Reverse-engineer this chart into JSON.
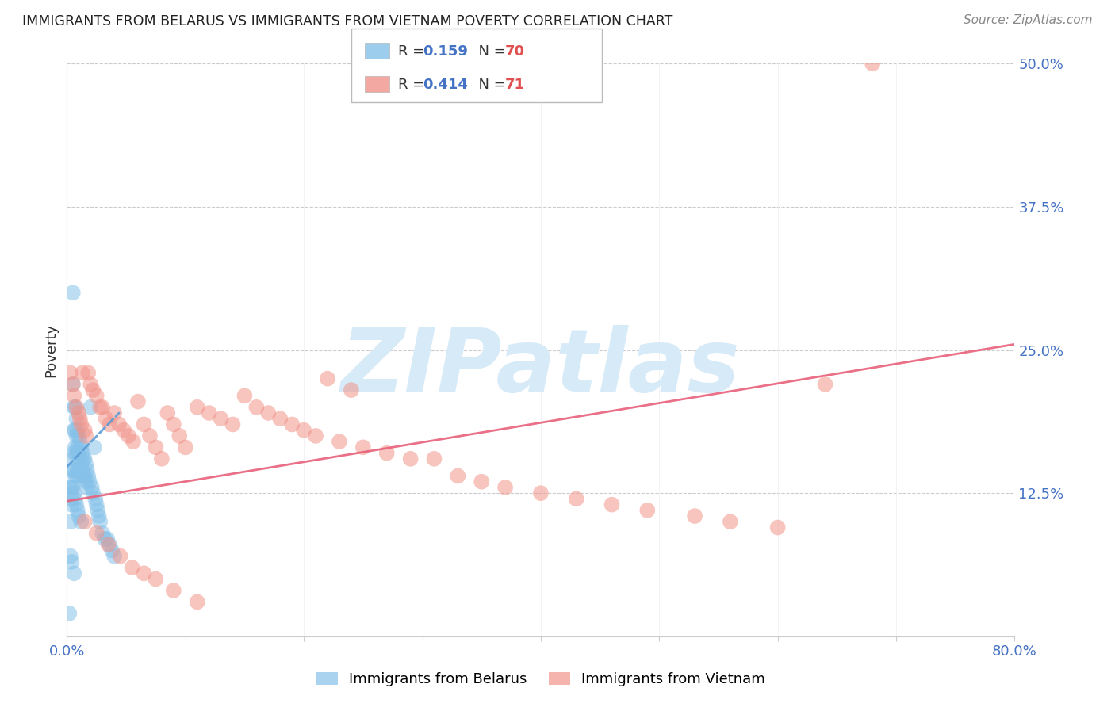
{
  "title": "IMMIGRANTS FROM BELARUS VS IMMIGRANTS FROM VIETNAM POVERTY CORRELATION CHART",
  "source": "Source: ZipAtlas.com",
  "ylabel": "Poverty",
  "xlim": [
    0.0,
    0.8
  ],
  "ylim": [
    0.0,
    0.5
  ],
  "color_belarus": "#85C1E9",
  "color_vietnam": "#F1948A",
  "trendline_belarus_color": "#5B9BD5",
  "trendline_vietnam_color": "#E8607A",
  "background_color": "#FFFFFF",
  "watermark_text": "ZIPatlas",
  "watermark_color": "#D6EAF8",
  "belarus_x": [
    0.002,
    0.003,
    0.003,
    0.004,
    0.004,
    0.004,
    0.005,
    0.005,
    0.005,
    0.005,
    0.006,
    0.006,
    0.006,
    0.006,
    0.007,
    0.007,
    0.007,
    0.007,
    0.008,
    0.008,
    0.008,
    0.008,
    0.009,
    0.009,
    0.009,
    0.01,
    0.01,
    0.01,
    0.011,
    0.011,
    0.011,
    0.012,
    0.012,
    0.013,
    0.013,
    0.014,
    0.014,
    0.015,
    0.015,
    0.016,
    0.016,
    0.017,
    0.017,
    0.018,
    0.019,
    0.02,
    0.021,
    0.022,
    0.023,
    0.024,
    0.025,
    0.026,
    0.027,
    0.028,
    0.03,
    0.032,
    0.034,
    0.036,
    0.038,
    0.04,
    0.003,
    0.005,
    0.006,
    0.007,
    0.008,
    0.009,
    0.01,
    0.012,
    0.004,
    0.006
  ],
  "belarus_y": [
    0.02,
    0.07,
    0.1,
    0.115,
    0.12,
    0.13,
    0.3,
    0.22,
    0.155,
    0.145,
    0.2,
    0.18,
    0.16,
    0.145,
    0.2,
    0.18,
    0.165,
    0.14,
    0.19,
    0.175,
    0.16,
    0.14,
    0.18,
    0.165,
    0.145,
    0.175,
    0.16,
    0.145,
    0.17,
    0.155,
    0.14,
    0.165,
    0.15,
    0.16,
    0.145,
    0.155,
    0.14,
    0.155,
    0.14,
    0.15,
    0.135,
    0.145,
    0.13,
    0.14,
    0.135,
    0.2,
    0.13,
    0.125,
    0.165,
    0.12,
    0.115,
    0.11,
    0.105,
    0.1,
    0.09,
    0.085,
    0.085,
    0.08,
    0.075,
    0.07,
    0.13,
    0.13,
    0.125,
    0.12,
    0.115,
    0.11,
    0.105,
    0.1,
    0.065,
    0.055
  ],
  "vietnam_x": [
    0.003,
    0.005,
    0.006,
    0.008,
    0.01,
    0.011,
    0.012,
    0.013,
    0.015,
    0.016,
    0.018,
    0.02,
    0.022,
    0.025,
    0.028,
    0.03,
    0.033,
    0.036,
    0.04,
    0.044,
    0.048,
    0.052,
    0.056,
    0.06,
    0.065,
    0.07,
    0.075,
    0.08,
    0.085,
    0.09,
    0.095,
    0.1,
    0.11,
    0.12,
    0.13,
    0.14,
    0.15,
    0.16,
    0.17,
    0.18,
    0.19,
    0.2,
    0.21,
    0.22,
    0.23,
    0.24,
    0.25,
    0.27,
    0.29,
    0.31,
    0.33,
    0.35,
    0.37,
    0.4,
    0.43,
    0.46,
    0.49,
    0.53,
    0.56,
    0.6,
    0.64,
    0.68,
    0.015,
    0.025,
    0.035,
    0.045,
    0.055,
    0.065,
    0.075,
    0.09,
    0.11
  ],
  "vietnam_y": [
    0.23,
    0.22,
    0.21,
    0.2,
    0.195,
    0.19,
    0.185,
    0.23,
    0.18,
    0.175,
    0.23,
    0.22,
    0.215,
    0.21,
    0.2,
    0.2,
    0.19,
    0.185,
    0.195,
    0.185,
    0.18,
    0.175,
    0.17,
    0.205,
    0.185,
    0.175,
    0.165,
    0.155,
    0.195,
    0.185,
    0.175,
    0.165,
    0.2,
    0.195,
    0.19,
    0.185,
    0.21,
    0.2,
    0.195,
    0.19,
    0.185,
    0.18,
    0.175,
    0.225,
    0.17,
    0.215,
    0.165,
    0.16,
    0.155,
    0.155,
    0.14,
    0.135,
    0.13,
    0.125,
    0.12,
    0.115,
    0.11,
    0.105,
    0.1,
    0.095,
    0.22,
    0.5,
    0.1,
    0.09,
    0.08,
    0.07,
    0.06,
    0.055,
    0.05,
    0.04,
    0.03
  ],
  "belarus_trend_x": [
    0.0,
    0.044
  ],
  "belarus_trend_y": [
    0.148,
    0.195
  ],
  "vietnam_trend_x": [
    0.0,
    0.8
  ],
  "vietnam_trend_y": [
    0.118,
    0.255
  ]
}
